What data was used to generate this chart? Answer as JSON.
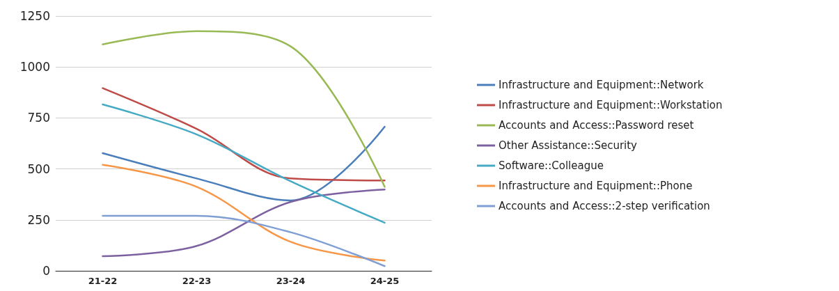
{
  "chart_data": {
    "type": "line",
    "categories": [
      "21-22",
      "22-23",
      "23-24",
      "24-25"
    ],
    "series": [
      {
        "name": "Infrastructure and Equipment::Network",
        "color": "#4a7ebb",
        "values": [
          577,
          453,
          345,
          707
        ]
      },
      {
        "name": "Infrastructure and Equipment::Workstation",
        "color": "#be4b48",
        "values": [
          896,
          696,
          453,
          443
        ]
      },
      {
        "name": "Accounts and Access::Password reset",
        "color": "#98b954",
        "values": [
          1111,
          1176,
          1101,
          412
        ]
      },
      {
        "name": "Other Assistance::Security",
        "color": "#7d60a0",
        "values": [
          72,
          122,
          338,
          399
        ]
      },
      {
        "name": "Software::Colleague",
        "color": "#46aac5",
        "values": [
          816,
          669,
          439,
          236
        ]
      },
      {
        "name": "Infrastructure and Equipment::Phone",
        "color": "#f79646",
        "values": [
          520,
          412,
          142,
          50
        ]
      },
      {
        "name": "Accounts and Access::2-step verification",
        "color": "#7f9fd4",
        "values": [
          270,
          270,
          189,
          23
        ]
      }
    ],
    "ylim": [
      0,
      1250
    ],
    "yticks": [
      0,
      250,
      500,
      750,
      1000,
      1250
    ],
    "grid": "y",
    "legend": "right",
    "marker": "none",
    "line_style": "solid"
  }
}
